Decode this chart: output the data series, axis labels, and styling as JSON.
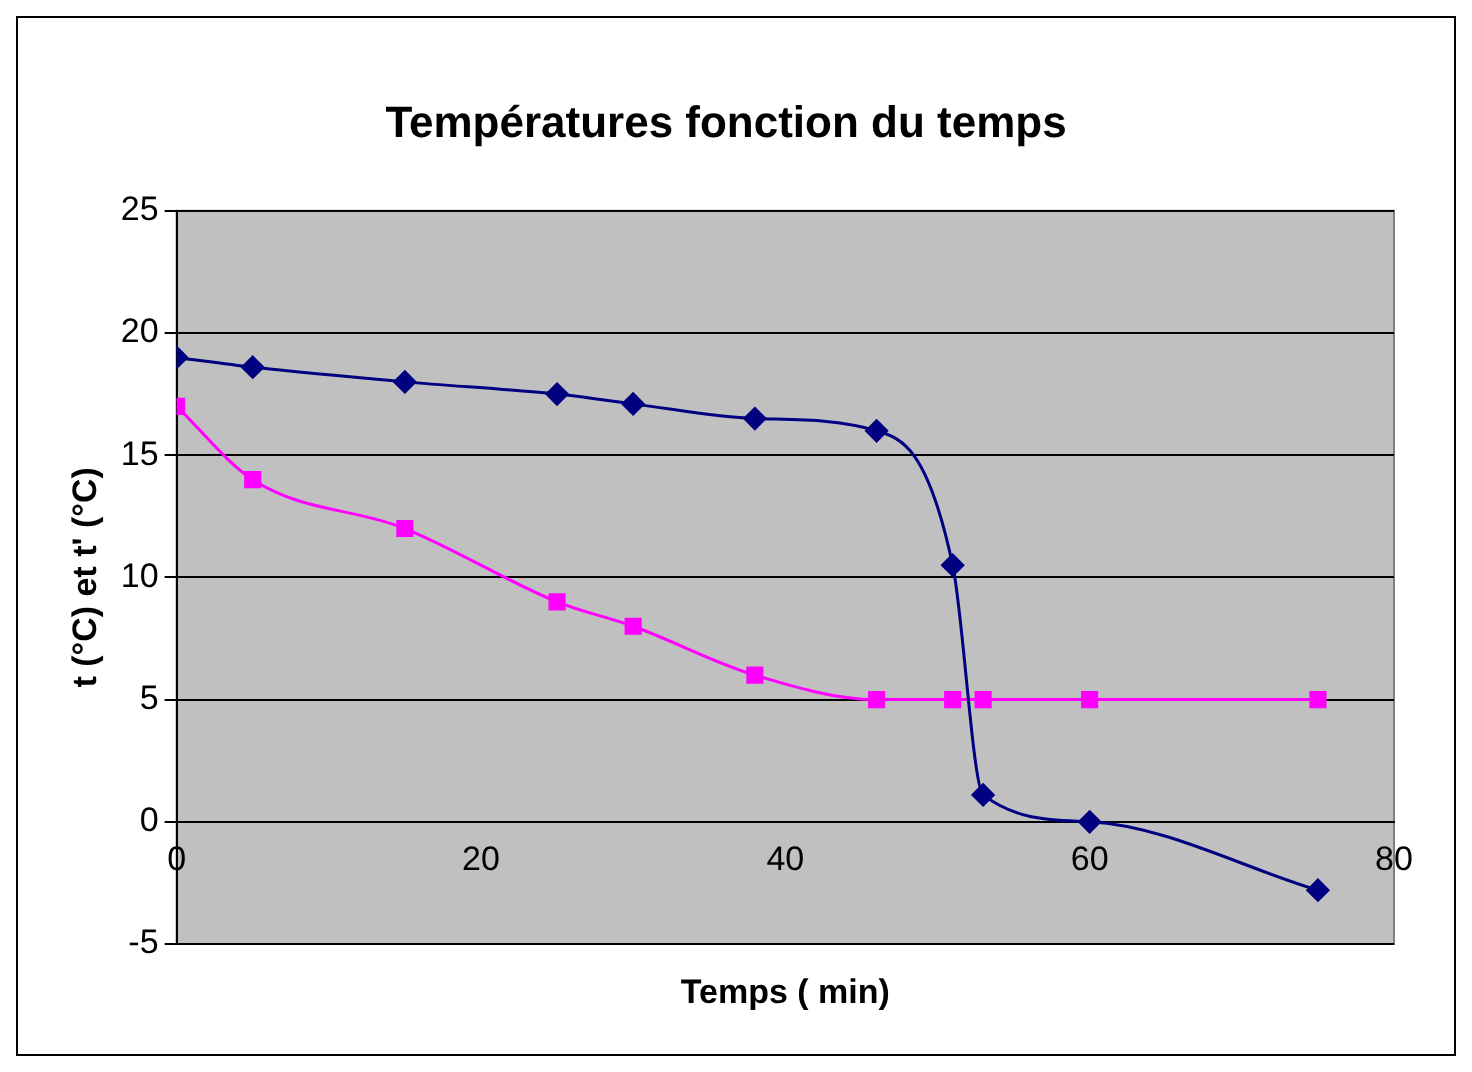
{
  "chart_data": {
    "type": "line",
    "title": "Températures fonction du temps",
    "xlabel": "Temps ( min)",
    "ylabel": "t (°C) et t' (°C)",
    "xlim": [
      0,
      80
    ],
    "xticks": [
      0,
      20,
      40,
      60,
      80
    ],
    "ylim": [
      -5,
      25
    ],
    "yticks": [
      -5,
      0,
      5,
      10,
      15,
      20,
      25
    ],
    "grid": "y",
    "legend": false,
    "series": [
      {
        "color": "#000080",
        "marker": "diamond",
        "x": [
          0,
          5,
          15,
          25,
          30,
          38,
          46,
          51,
          53,
          60,
          75
        ],
        "values": [
          19,
          18.6,
          18,
          17.5,
          17.1,
          16.5,
          16,
          10.5,
          1.1,
          0,
          -2.8
        ]
      },
      {
        "color": "#ff00ff",
        "marker": "square",
        "x": [
          0,
          5,
          15,
          25,
          30,
          38,
          46,
          51,
          53,
          60,
          75
        ],
        "values": [
          17,
          14,
          12,
          9,
          8,
          6,
          5,
          5,
          5,
          5,
          5
        ]
      }
    ]
  }
}
